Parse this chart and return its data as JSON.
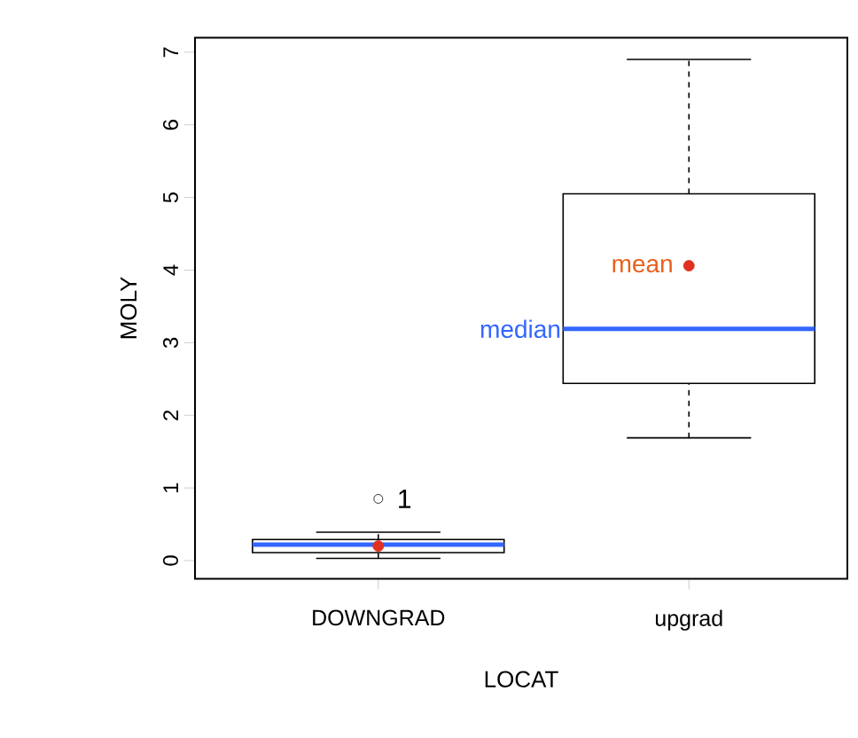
{
  "chart_data": {
    "type": "box",
    "xlabel": "LOCAT",
    "ylabel": "MOLY",
    "categories": [
      "DOWNGRAD",
      "upgrad"
    ],
    "boxes": [
      {
        "low": 0.03,
        "q1": 0.11,
        "median": 0.22,
        "q3": 0.29,
        "high": 0.39,
        "mean": 0.2,
        "outliers": [
          0.85
        ]
      },
      {
        "low": 1.69,
        "q1": 2.44,
        "median": 3.19,
        "q3": 5.05,
        "high": 6.9,
        "mean": 4.06
      }
    ],
    "ylim": [
      -0.25,
      7.2
    ],
    "yticks": [
      0,
      1,
      2,
      3,
      4,
      5,
      6,
      7
    ],
    "annotations": [
      "mean",
      "median",
      "1"
    ]
  }
}
